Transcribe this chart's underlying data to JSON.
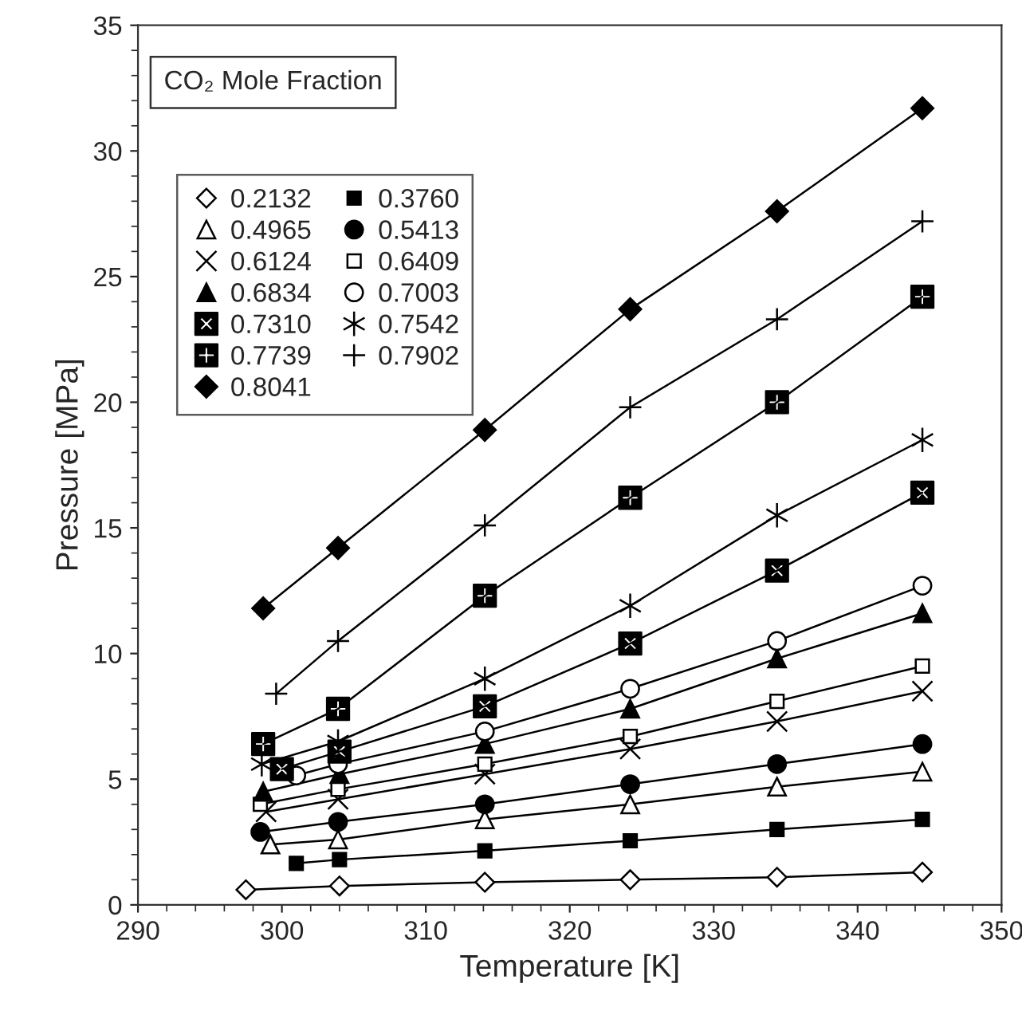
{
  "chart_data": {
    "type": "line",
    "xlabel": "Temperature [K]",
    "ylabel": "Pressure [MPa]",
    "legend_title": "CO₂ Mole Fraction",
    "xlim": [
      290,
      350
    ],
    "xticks": [
      290,
      300,
      310,
      320,
      330,
      340,
      350
    ],
    "ylim": [
      0,
      35
    ],
    "yticks": [
      0,
      5,
      10,
      15,
      20,
      25,
      30,
      35
    ],
    "grid": false,
    "legend": "top left",
    "line_style": "solid",
    "series": [
      {
        "name": "0.2132",
        "color": "#000000",
        "marker": "diamond_open",
        "x": [
          297.5,
          304.0,
          314.1,
          324.2,
          334.4,
          344.5
        ],
        "values": [
          0.6,
          0.75,
          0.9,
          1.0,
          1.1,
          1.3
        ]
      },
      {
        "name": "0.3760",
        "color": "#000000",
        "marker": "square",
        "x": [
          301.0,
          304.0,
          314.1,
          324.2,
          334.4,
          344.5
        ],
        "values": [
          1.65,
          1.8,
          2.15,
          2.55,
          3.0,
          3.4
        ]
      },
      {
        "name": "0.4965",
        "color": "#000000",
        "marker": "triangle_open",
        "x": [
          299.2,
          303.9,
          314.1,
          324.2,
          334.4,
          344.5
        ],
        "values": [
          2.4,
          2.6,
          3.4,
          4.0,
          4.7,
          5.3
        ]
      },
      {
        "name": "0.5413",
        "color": "#000000",
        "marker": "circle",
        "x": [
          298.5,
          303.9,
          314.1,
          324.2,
          334.4,
          344.5
        ],
        "values": [
          2.9,
          3.3,
          4.0,
          4.8,
          5.6,
          6.4
        ]
      },
      {
        "name": "0.6124",
        "color": "#000000",
        "marker": "x",
        "x": [
          298.9,
          303.9,
          314.1,
          324.2,
          334.4,
          344.5
        ],
        "values": [
          3.7,
          4.2,
          5.2,
          6.2,
          7.3,
          8.5
        ]
      },
      {
        "name": "0.6409",
        "color": "#000000",
        "marker": "square_open",
        "x": [
          298.5,
          303.9,
          314.1,
          324.2,
          334.4,
          344.5
        ],
        "values": [
          4.0,
          4.6,
          5.6,
          6.7,
          8.1,
          9.5
        ]
      },
      {
        "name": "0.6834",
        "color": "#000000",
        "marker": "triangle",
        "x": [
          298.7,
          304.0,
          314.1,
          324.2,
          334.4,
          344.5
        ],
        "values": [
          4.5,
          5.2,
          6.4,
          7.8,
          9.8,
          11.6
        ]
      },
      {
        "name": "0.7003",
        "color": "#000000",
        "marker": "circle_open",
        "x": [
          301.0,
          303.9,
          314.1,
          324.2,
          334.4,
          344.5
        ],
        "values": [
          5.15,
          5.6,
          6.9,
          8.6,
          10.5,
          12.7
        ]
      },
      {
        "name": "0.7310",
        "color": "#000000",
        "marker": "square_x",
        "x": [
          300.0,
          304.0,
          314.1,
          324.2,
          334.4,
          344.5
        ],
        "values": [
          5.4,
          6.1,
          7.9,
          10.4,
          13.3,
          16.4
        ]
      },
      {
        "name": "0.7542",
        "color": "#000000",
        "marker": "cross",
        "x": [
          298.6,
          303.9,
          314.1,
          324.2,
          334.4,
          344.5
        ],
        "values": [
          5.6,
          6.5,
          9.0,
          11.9,
          15.5,
          18.5
        ]
      },
      {
        "name": "0.7739",
        "color": "#000000",
        "marker": "square_plus",
        "x": [
          298.7,
          303.9,
          314.1,
          324.2,
          334.4,
          344.5
        ],
        "values": [
          6.4,
          7.8,
          12.3,
          16.2,
          20.0,
          24.2
        ]
      },
      {
        "name": "0.7902",
        "color": "#000000",
        "marker": "plus",
        "x": [
          299.6,
          303.9,
          314.1,
          324.2,
          334.4,
          344.5
        ],
        "values": [
          8.4,
          10.5,
          15.1,
          19.8,
          23.3,
          27.2
        ]
      },
      {
        "name": "0.8041",
        "color": "#000000",
        "marker": "diamond",
        "x": [
          298.7,
          303.9,
          314.1,
          324.2,
          334.4,
          344.5
        ],
        "values": [
          11.8,
          14.2,
          18.9,
          23.7,
          27.6,
          31.7
        ]
      }
    ]
  }
}
